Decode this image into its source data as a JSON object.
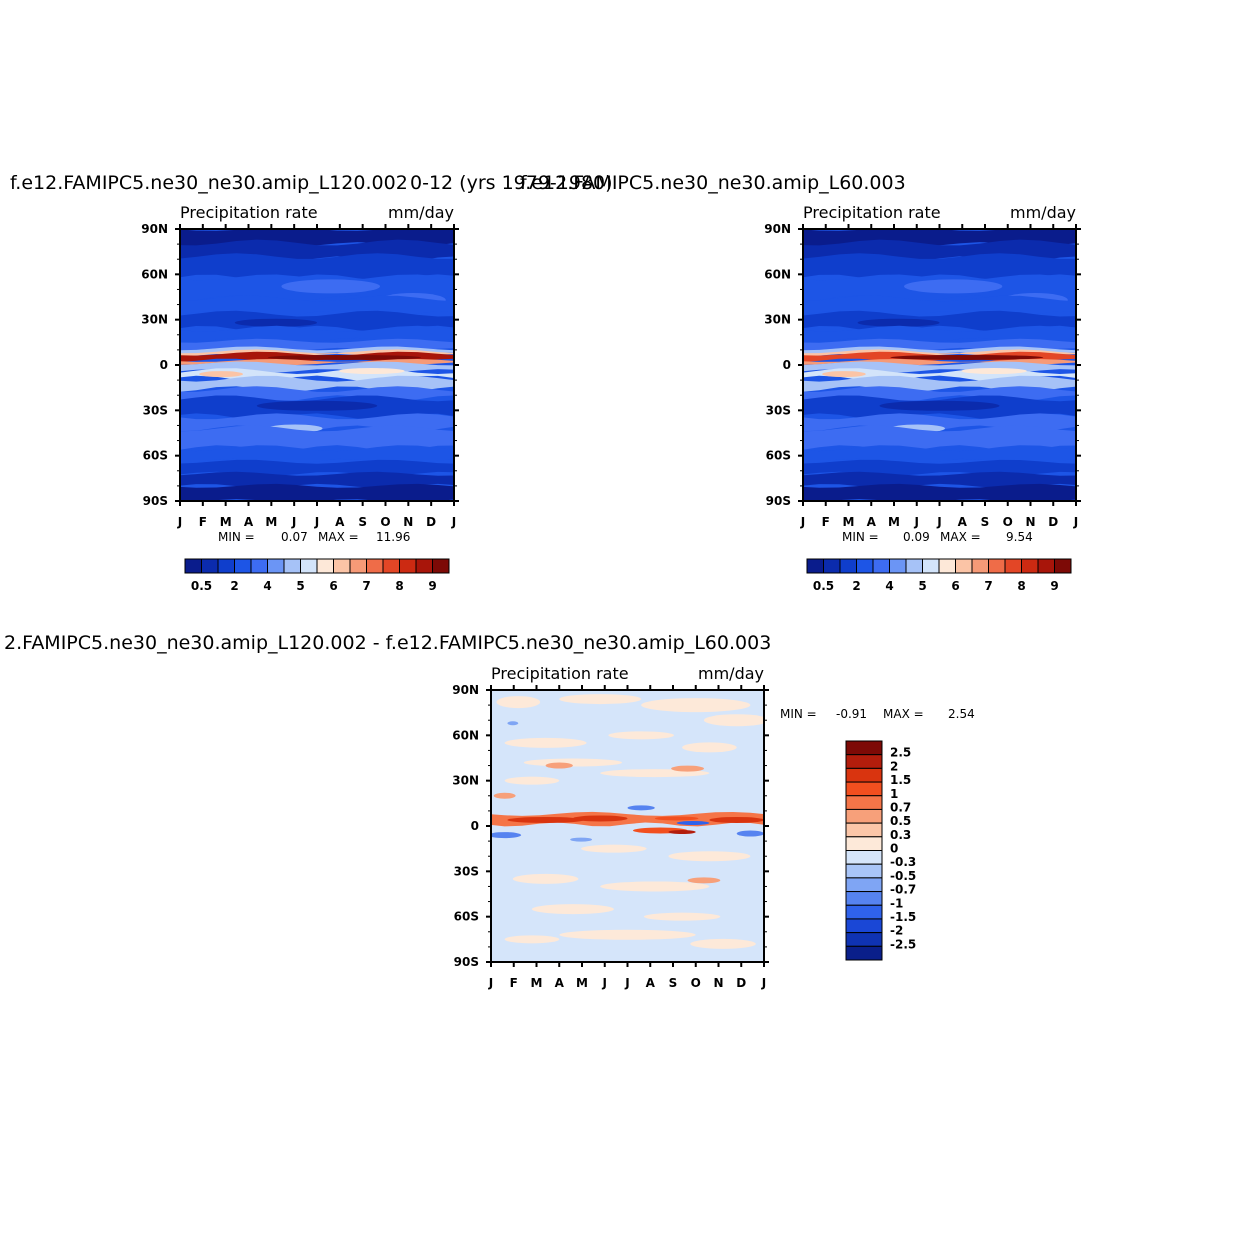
{
  "titles": {
    "left": "f.e12.FAMIPC5.ne30_ne30.amip_L120.002",
    "center": "0-12 (yrs 1979-1980)",
    "right": "f.e12.FAMIPC5.ne30_ne30.amip_L60.003",
    "diff": "2.FAMIPC5.ne30_ne30.amip_L120.002 - f.e12.FAMIPC5.ne30_ne30.amip_L60.003"
  },
  "colors": {
    "abs_fills": [
      "#0a1c8c",
      "#0b2bad",
      "#0f3ecc",
      "#1d55e6",
      "#3d6cf2",
      "#6b95f5",
      "#a6c2f7",
      "#d3e4fa",
      "#fde8d8",
      "#fbc4a6",
      "#f69a77",
      "#ef6c48",
      "#e34626",
      "#cc2a12",
      "#a8150a",
      "#7d0a06"
    ],
    "diff_fills": [
      "#7d0a06",
      "#b31d0c",
      "#d9340f",
      "#f24f1f",
      "#f57548",
      "#f7a07a",
      "#fbc6a8",
      "#fde9d9",
      "#d5e5fa",
      "#a9c5f7",
      "#7fa5f4",
      "#5683f0",
      "#2f62eb",
      "#1a47d6",
      "#0f33b3",
      "#0a1f8a"
    ]
  },
  "chart_data": [
    {
      "type": "heatmap",
      "title": "Precipitation  rate",
      "units": "mm/day",
      "x_categories": [
        "J",
        "F",
        "M",
        "A",
        "M",
        "J",
        "J",
        "A",
        "S",
        "O",
        "N",
        "D",
        "J"
      ],
      "y_ticks": [
        "90N",
        "60N",
        "30N",
        "0",
        "30S",
        "60S",
        "90S"
      ],
      "ylim": [
        -90,
        90
      ],
      "stats": {
        "min_label": "MIN =",
        "min": "0.07",
        "max_label": "MAX =",
        "max": "11.96"
      },
      "colorbar_levels": [
        0.5,
        1,
        2,
        3,
        4,
        4.5,
        5,
        5.5,
        6,
        6.5,
        7,
        7.5,
        8,
        8.5,
        9
      ],
      "colorbar_labels": [
        "0.5",
        "2",
        "4",
        "5",
        "6",
        "7",
        "8",
        "9"
      ],
      "colorbar_label_positions": [
        0,
        2,
        4,
        6,
        8,
        10,
        12,
        14
      ]
    },
    {
      "type": "heatmap",
      "title": "Precipitation  rate",
      "units": "mm/day",
      "x_categories": [
        "J",
        "F",
        "M",
        "A",
        "M",
        "J",
        "J",
        "A",
        "S",
        "O",
        "N",
        "D",
        "J"
      ],
      "y_ticks": [
        "90N",
        "60N",
        "30N",
        "0",
        "30S",
        "60S",
        "90S"
      ],
      "ylim": [
        -90,
        90
      ],
      "stats": {
        "min_label": "MIN =",
        "min": "0.09",
        "max_label": "MAX =",
        "max": "9.54"
      },
      "colorbar_levels": [
        0.5,
        1,
        2,
        3,
        4,
        4.5,
        5,
        5.5,
        6,
        6.5,
        7,
        7.5,
        8,
        8.5,
        9
      ],
      "colorbar_labels": [
        "0.5",
        "2",
        "4",
        "5",
        "6",
        "7",
        "8",
        "9"
      ],
      "colorbar_label_positions": [
        0,
        2,
        4,
        6,
        8,
        10,
        12,
        14
      ]
    },
    {
      "type": "heatmap",
      "title": "Precipitation  rate",
      "units": "mm/day",
      "x_categories": [
        "J",
        "F",
        "M",
        "A",
        "M",
        "J",
        "J",
        "A",
        "S",
        "O",
        "N",
        "D",
        "J"
      ],
      "y_ticks": [
        "90N",
        "60N",
        "30N",
        "0",
        "30S",
        "60S",
        "90S"
      ],
      "ylim": [
        -90,
        90
      ],
      "stats": {
        "min_label": "MIN =",
        "min": "-0.91",
        "max_label": "MAX =",
        "max": "2.54"
      },
      "colorbar_labels": [
        "2.5",
        "2",
        "1.5",
        "1",
        "0.7",
        "0.5",
        "0.3",
        "0",
        "-0.3",
        "-0.5",
        "-0.7",
        "-1",
        "-1.5",
        "-2",
        "-2.5"
      ]
    }
  ]
}
